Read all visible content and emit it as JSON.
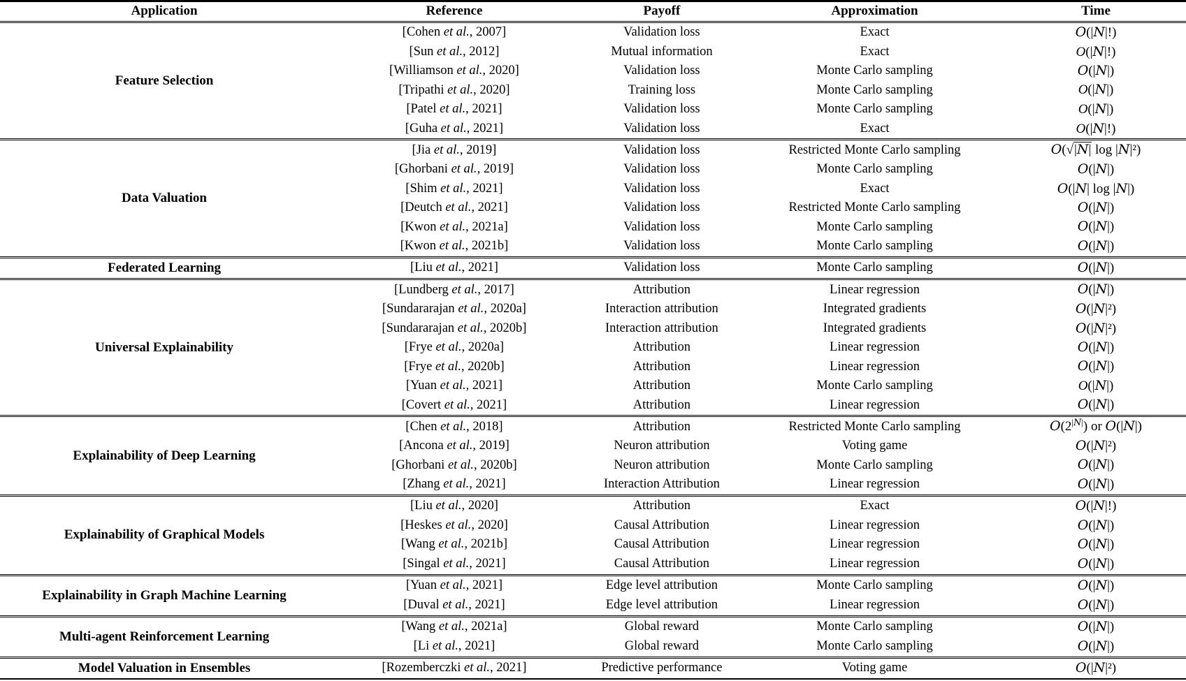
{
  "table": {
    "columns": [
      "Application",
      "Reference",
      "Payoff",
      "Approximation",
      "Time"
    ],
    "sections": [
      {
        "application": "Feature Selection",
        "rows": [
          {
            "reference": "[Cohen et al., 2007]",
            "payoff": "Validation loss",
            "approximation": "Exact",
            "time": "𝒪(|𝒩|!)"
          },
          {
            "reference": "[Sun et al., 2012]",
            "payoff": "Mutual information",
            "approximation": "Exact",
            "time": "O(|𝒩|!)"
          },
          {
            "reference": "[Williamson et al., 2020]",
            "payoff": "Validation loss",
            "approximation": "Monte Carlo sampling",
            "time": "𝒪(|𝒩|)"
          },
          {
            "reference": "[Tripathi et al., 2020]",
            "payoff": "Training loss",
            "approximation": "Monte Carlo sampling",
            "time": "O(|𝒩|)"
          },
          {
            "reference": "[Patel et al., 2021]",
            "payoff": "Validation loss",
            "approximation": "Monte Carlo sampling",
            "time": "O(|𝒩|)"
          },
          {
            "reference": "[Guha et al., 2021]",
            "payoff": "Validation loss",
            "approximation": "Exact",
            "time": "O(|𝒩|!)"
          }
        ]
      },
      {
        "application": "Data Valuation",
        "rows": [
          {
            "reference": "[Jia et al., 2019]",
            "payoff": "Validation loss",
            "approximation": "Restricted Monte Carlo sampling",
            "time": "𝒪(√{|𝒩|} log |𝒩|²)"
          },
          {
            "reference": "[Ghorbani et al., 2019]",
            "payoff": "Validation loss",
            "approximation": "Monte Carlo sampling",
            "time": "𝒪(|𝒩|)"
          },
          {
            "reference": "[Shim et al., 2021]",
            "payoff": "Validation loss",
            "approximation": "Exact",
            "time": "𝒪(|𝒩| log |𝒩|)"
          },
          {
            "reference": "[Deutch et al., 2021]",
            "payoff": "Validation loss",
            "approximation": "Restricted Monte Carlo sampling",
            "time": "𝒪(|𝒩|)"
          },
          {
            "reference": "[Kwon et al., 2021a]",
            "payoff": "Validation loss",
            "approximation": "Monte Carlo sampling",
            "time": "𝒪(|𝒩|)"
          },
          {
            "reference": "[Kwon et al., 2021b]",
            "payoff": "Validation loss",
            "approximation": "Monte Carlo sampling",
            "time": "𝒪(|𝒩|)"
          }
        ]
      },
      {
        "application": "Federated Learning",
        "rows": [
          {
            "reference": "[Liu et al., 2021]",
            "payoff": "Validation loss",
            "approximation": "Monte Carlo sampling",
            "time": "𝒪(|𝒩|)"
          }
        ]
      },
      {
        "application": "Universal Explainability",
        "rows": [
          {
            "reference": "[Lundberg et al., 2017]",
            "payoff": "Attribution",
            "approximation": "Linear regression",
            "time": "𝒪(|𝒩|)"
          },
          {
            "reference": "[Sundararajan et al., 2020a]",
            "payoff": "Interaction attribution",
            "approximation": "Integrated gradients",
            "time": "𝒪(|𝒩|²)"
          },
          {
            "reference": "[Sundararajan et al., 2020b]",
            "payoff": "Interaction attribution",
            "approximation": "Integrated gradients",
            "time": "𝒪(|𝒩|²)"
          },
          {
            "reference": "[Frye et al., 2020a]",
            "payoff": "Attribution",
            "approximation": "Linear regression",
            "time": "𝒪(|𝒩|)"
          },
          {
            "reference": "[Frye et al., 2020b]",
            "payoff": "Attribution",
            "approximation": "Linear regression",
            "time": "𝒪(|𝒩|)"
          },
          {
            "reference": "[Yuan et al., 2021]",
            "payoff": "Attribution",
            "approximation": "Monte Carlo sampling",
            "time": "O(|𝒩|)"
          },
          {
            "reference": "[Covert et al., 2021]",
            "payoff": "Attribution",
            "approximation": "Linear regression",
            "time": "𝒪(|𝒩|)"
          }
        ]
      },
      {
        "application": "Explainability of Deep Learning",
        "rows": [
          {
            "reference": "[Chen et al., 2018]",
            "payoff": "Attribution",
            "approximation": "Restricted Monte Carlo sampling",
            "time": "𝒪(2^{|𝒩|}) or 𝒪(|𝒩|)"
          },
          {
            "reference": "[Ancona et al., 2019]",
            "payoff": "Neuron attribution",
            "approximation": "Voting game",
            "time": "𝒪(|𝒩|²)"
          },
          {
            "reference": "[Ghorbani et al., 2020b]",
            "payoff": "Neuron attribution",
            "approximation": "Monte Carlo sampling",
            "time": "𝒪(|𝒩|)"
          },
          {
            "reference": "[Zhang et al., 2021]",
            "payoff": "Interaction Attribution",
            "approximation": "Linear regression",
            "time": "𝒪(|𝒩|)"
          }
        ]
      },
      {
        "application": "Explainability of Graphical Models",
        "rows": [
          {
            "reference": "[Liu et al., 2020]",
            "payoff": "Attribution",
            "approximation": "Exact",
            "time": "𝒪(|𝒩|!)"
          },
          {
            "reference": "[Heskes et al., 2020]",
            "payoff": "Causal Attribution",
            "approximation": "Linear regression",
            "time": "𝒪(|𝒩|)"
          },
          {
            "reference": "[Wang et al., 2021b]",
            "payoff": "Causal Attribution",
            "approximation": "Linear regression",
            "time": "𝒪(|𝒩|)"
          },
          {
            "reference": "[Singal et al., 2021]",
            "payoff": "Causal Attribution",
            "approximation": "Linear regression",
            "time": "𝒪(|𝒩|)"
          }
        ]
      },
      {
        "application": "Explainability in Graph Machine Learning",
        "rows": [
          {
            "reference": "[Yuan et al., 2021]",
            "payoff": "Edge level attribution",
            "approximation": "Monte Carlo sampling",
            "time": "𝒪(|𝒩|)"
          },
          {
            "reference": "[Duval et al., 2021]",
            "payoff": "Edge level attribution",
            "approximation": "Linear regression",
            "time": "𝒪(|𝒩|)"
          }
        ]
      },
      {
        "application": "Multi-agent Reinforcement Learning",
        "rows": [
          {
            "reference": "[Wang et al., 2021a]",
            "payoff": "Global reward",
            "approximation": "Monte Carlo sampling",
            "time": "𝒪(|𝒩|)"
          },
          {
            "reference": "[Li et al., 2021]",
            "payoff": "Global reward",
            "approximation": "Monte Carlo sampling",
            "time": "𝒪(|𝒩|)"
          }
        ]
      },
      {
        "application": "Model Valuation in Ensembles",
        "rows": [
          {
            "reference": "[Rozemberczki et al., 2021]",
            "payoff": "Predictive performance",
            "approximation": "Voting game",
            "time": "𝒪(|𝒩|²)"
          }
        ]
      }
    ]
  }
}
